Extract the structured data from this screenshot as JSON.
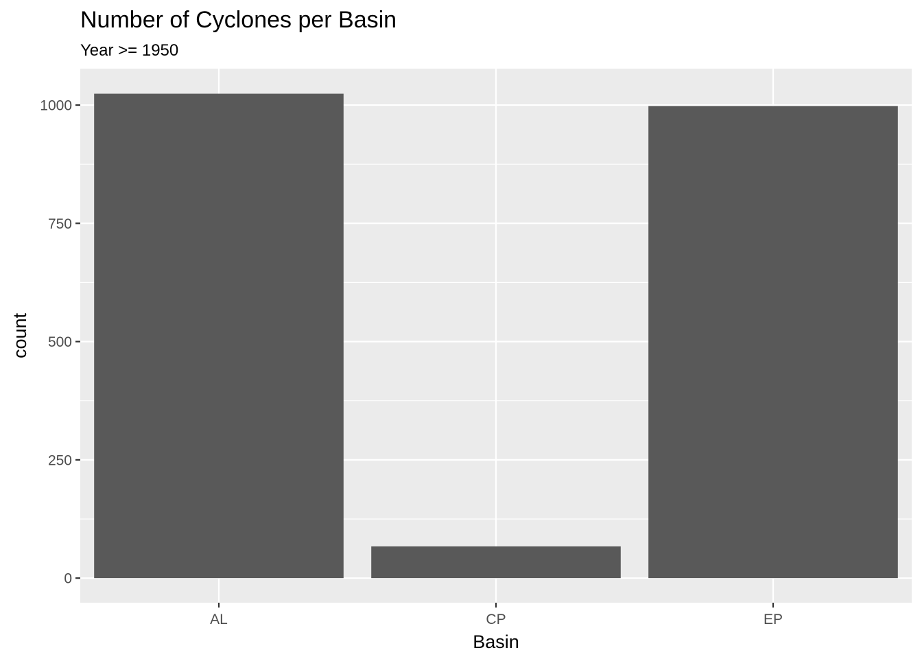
{
  "chart_data": {
    "type": "bar",
    "title": "Number of Cyclones per Basin",
    "subtitle": "Year >= 1950",
    "xlabel": "Basin",
    "ylabel": "count",
    "categories": [
      "AL",
      "CP",
      "EP"
    ],
    "values": [
      1024,
      67,
      998
    ],
    "ylim": [
      -52,
      1077
    ],
    "yticks": [
      0,
      250,
      500,
      750,
      1000
    ],
    "yminor": [
      125,
      375,
      625,
      875
    ],
    "grid": true,
    "legend": "none",
    "colors": {
      "bar": "#595959",
      "panel": "#EBEBEB",
      "grid": "#FFFFFF",
      "tick": "#333333"
    }
  }
}
